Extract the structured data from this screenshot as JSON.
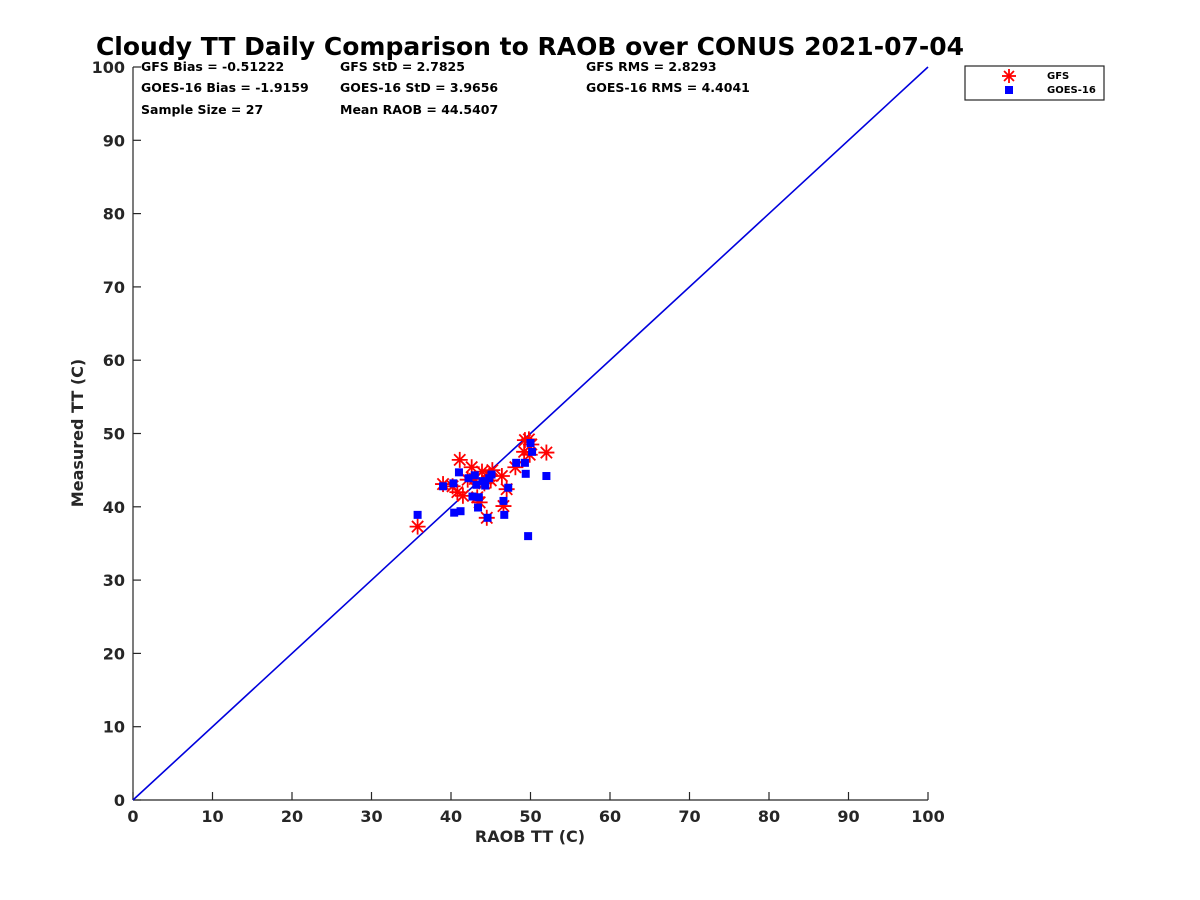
{
  "chart_data": {
    "type": "scatter",
    "title": "Cloudy TT Daily Comparison to RAOB over CONUS 2021-07-04",
    "xlabel": "RAOB TT (C)",
    "ylabel": "Measured TT (C)",
    "xlim": [
      0,
      100
    ],
    "ylim": [
      0,
      100
    ],
    "xticks": [
      "0",
      "10",
      "20",
      "30",
      "40",
      "50",
      "60",
      "70",
      "80",
      "90",
      "100"
    ],
    "yticks": [
      "0",
      "10",
      "20",
      "30",
      "40",
      "50",
      "60",
      "70",
      "80",
      "90",
      "100"
    ],
    "grid": false,
    "legend_position": "top-right-outside",
    "stats": [
      [
        "GFS Bias = -0.51222",
        "GFS StD = 2.7825",
        "GFS RMS = 2.8293"
      ],
      [
        "GOES-16 Bias = -1.9159",
        "GOES-16 StD = 3.9656",
        "GOES-16 RMS = 4.4041"
      ],
      [
        "Sample Size = 27",
        "Mean RAOB = 44.5407"
      ]
    ],
    "reference_line": {
      "x": [
        0,
        100
      ],
      "y": [
        0,
        100
      ],
      "color": "#0000dd"
    },
    "series": [
      {
        "name": "GFS",
        "marker": "asterisk",
        "color": "#ff0000",
        "points": [
          [
            35.8,
            37.3
          ],
          [
            39.0,
            43.1
          ],
          [
            40.2,
            42.8
          ],
          [
            40.8,
            42.0
          ],
          [
            41.1,
            46.4
          ],
          [
            41.5,
            41.5
          ],
          [
            42.6,
            45.4
          ],
          [
            43.0,
            43.8
          ],
          [
            43.3,
            41.3
          ],
          [
            43.6,
            40.6
          ],
          [
            43.9,
            44.8
          ],
          [
            44.2,
            43.2
          ],
          [
            44.5,
            38.5
          ],
          [
            44.8,
            44.2
          ],
          [
            45.2,
            45.0
          ],
          [
            46.4,
            44.2
          ],
          [
            46.6,
            40.1
          ],
          [
            48.1,
            45.4
          ],
          [
            49.2,
            47.5
          ],
          [
            49.3,
            49.1
          ],
          [
            49.8,
            49.2
          ],
          [
            49.9,
            47.1
          ],
          [
            50.1,
            48.5
          ],
          [
            52.0,
            47.4
          ],
          [
            42.1,
            43.7
          ],
          [
            45.0,
            43.6
          ],
          [
            47.0,
            42.4
          ]
        ]
      },
      {
        "name": "GOES-16",
        "marker": "square",
        "color": "#0000ff",
        "points": [
          [
            35.8,
            38.9
          ],
          [
            39.0,
            42.8
          ],
          [
            40.3,
            43.2
          ],
          [
            40.4,
            39.2
          ],
          [
            41.0,
            44.7
          ],
          [
            41.2,
            39.4
          ],
          [
            42.7,
            41.4
          ],
          [
            43.0,
            44.3
          ],
          [
            43.2,
            43.0
          ],
          [
            43.4,
            39.9
          ],
          [
            43.5,
            41.3
          ],
          [
            44.0,
            43.5
          ],
          [
            44.3,
            42.9
          ],
          [
            44.6,
            38.5
          ],
          [
            45.1,
            44.4
          ],
          [
            46.6,
            40.8
          ],
          [
            46.7,
            38.9
          ],
          [
            48.2,
            46.0
          ],
          [
            49.3,
            46.0
          ],
          [
            49.4,
            44.5
          ],
          [
            49.7,
            36.0
          ],
          [
            50.0,
            48.7
          ],
          [
            50.2,
            47.5
          ],
          [
            52.0,
            44.2
          ],
          [
            42.2,
            43.9
          ],
          [
            44.8,
            43.9
          ],
          [
            47.2,
            42.6
          ]
        ]
      }
    ]
  }
}
